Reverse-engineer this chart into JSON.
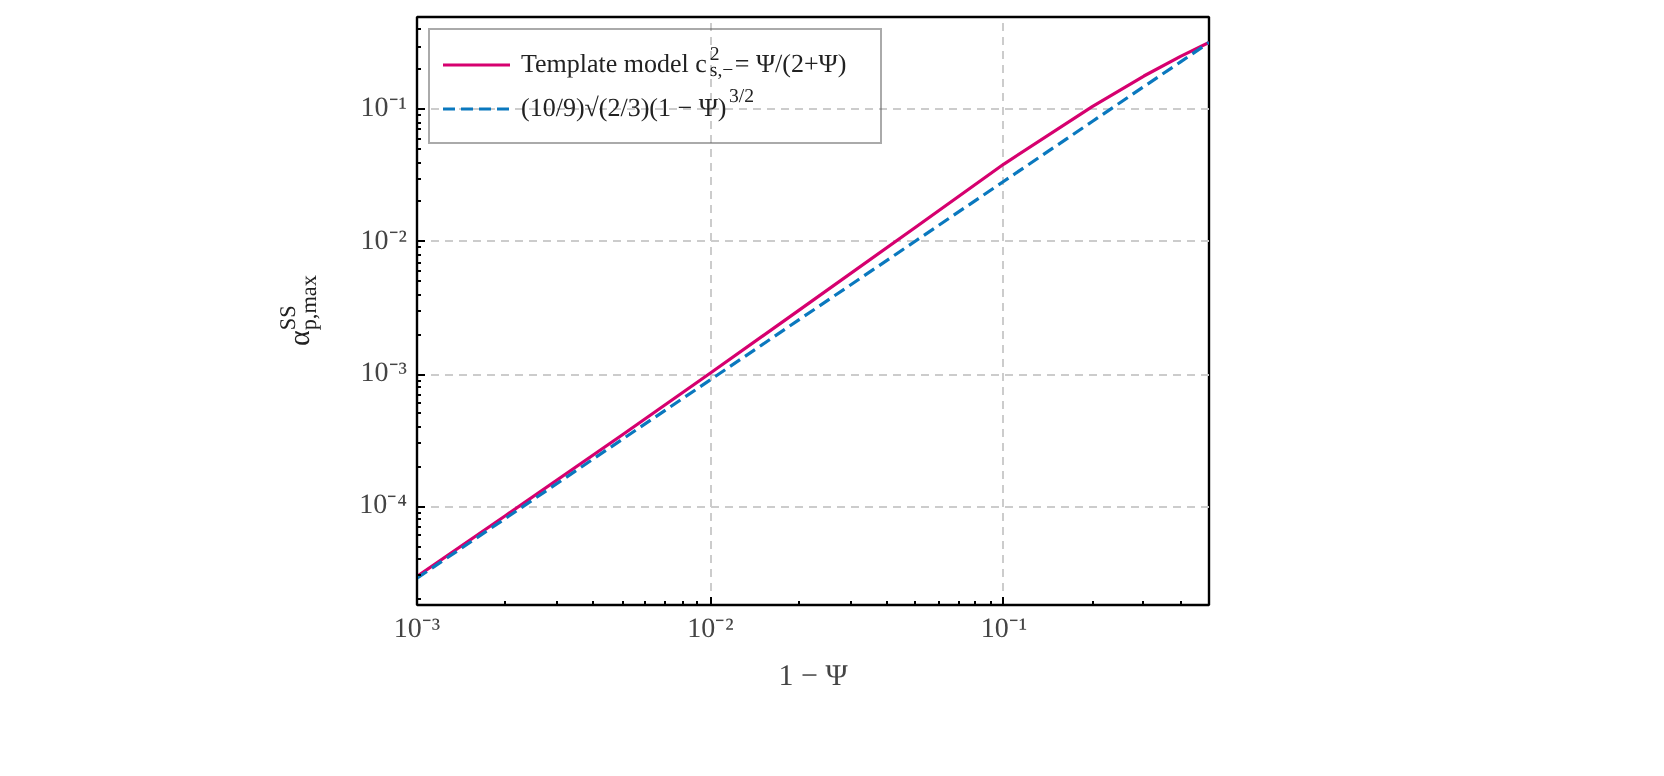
{
  "chart_data": {
    "type": "line",
    "xlabel": "1 − Ψ",
    "ylabel": "α$_{p,max}$$^{SS}$",
    "log": "xy",
    "grid": true,
    "legend": "top left",
    "xlim": [
      0.001,
      0.5
    ],
    "ylim": [
      1.8e-05,
      0.5
    ],
    "xticks": [
      {
        "value": 0.001,
        "label": "10⁻³"
      },
      {
        "value": 0.01,
        "label": "10⁻²"
      },
      {
        "value": 0.1,
        "label": "10⁻¹"
      }
    ],
    "yticks": [
      {
        "value": 0.0001,
        "label": "10⁻⁴"
      },
      {
        "value": 0.001,
        "label": "10⁻³"
      },
      {
        "value": 0.01,
        "label": "10⁻²"
      },
      {
        "value": 0.1,
        "label": "10⁻¹"
      }
    ],
    "x": [
      0.001,
      0.002,
      0.005,
      0.01,
      0.02,
      0.05,
      0.1,
      0.2,
      0.3,
      0.4,
      0.5
    ],
    "series": [
      {
        "name": "Template model c$_{s,−}$$^{2}$ = Ψ/(2+Ψ)",
        "color": "#d6006f",
        "line_style": "solid",
        "values": [
          2.96e-05,
          8.5e-05,
          0.000347,
          0.00102,
          0.00303,
          0.0129,
          0.0387,
          0.105,
          0.179,
          0.252,
          0.321
        ]
      },
      {
        "name": "(10/9)√(2/3)(1 − Ψ)$^{3/2}$",
        "color": "#0a78be",
        "line_style": "dashed",
        "values": [
          2.87e-05,
          8.11e-05,
          0.000321,
          0.000907,
          0.00257,
          0.01014,
          0.0287,
          0.0811,
          0.149,
          0.229,
          0.321
        ]
      }
    ]
  }
}
